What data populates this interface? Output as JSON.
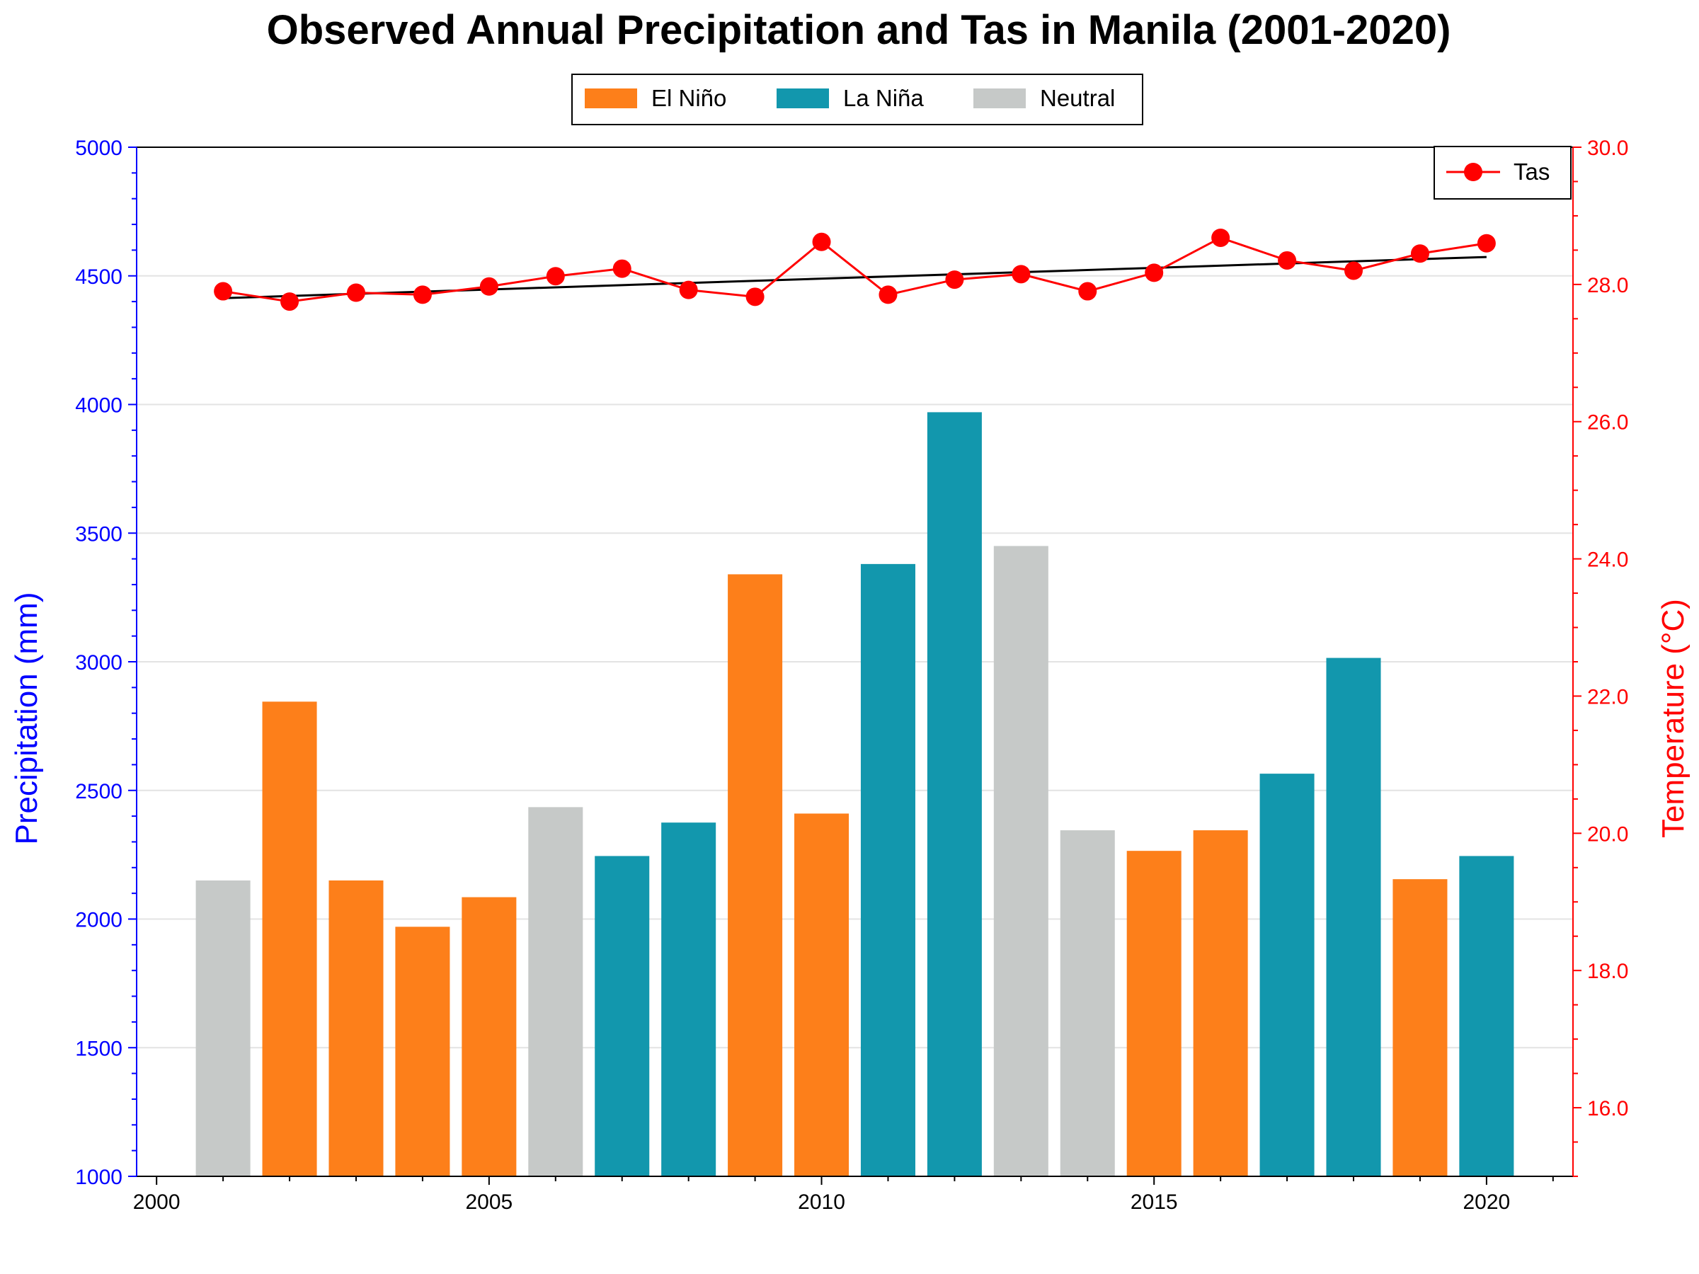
{
  "chart_data": {
    "type": "bar",
    "title": "Observed Annual Precipitation and Tas in Manila (2001-2020)",
    "xlabel": "",
    "ylabel": "Precipitation (mm)",
    "y2label": "Temperature (°C)",
    "xlim": [
      1999.7,
      2021.3
    ],
    "xticks": [
      2000,
      2005,
      2010,
      2015,
      2020
    ],
    "ylim": [
      1000,
      5000
    ],
    "yticks": [
      1000,
      1500,
      2000,
      2500,
      3000,
      3500,
      4000,
      4500,
      5000
    ],
    "y2lim": [
      15.0,
      30.0
    ],
    "y2ticks": [
      "16.0",
      "18.0",
      "20.0",
      "22.0",
      "24.0",
      "26.0",
      "28.0",
      "30.0"
    ],
    "grid": "horizontal",
    "legend_position": "top-center",
    "legend2_position": "top-right",
    "colors": {
      "El Niño": "#fd7f1a",
      "La Niña": "#1297ad",
      "Neutral": "#c6c9c8",
      "tas": "#ff0000",
      "trend": "#000000",
      "left_axis": "#0000ff",
      "right_axis": "#ff0000"
    },
    "legend": [
      "El Niño",
      "La Niña",
      "Neutral"
    ],
    "years": [
      2001,
      2002,
      2003,
      2004,
      2005,
      2006,
      2007,
      2008,
      2009,
      2010,
      2011,
      2012,
      2013,
      2014,
      2015,
      2016,
      2017,
      2018,
      2019,
      2020
    ],
    "precipitation": [
      2150,
      2845,
      2150,
      1970,
      2085,
      2435,
      2245,
      2375,
      3340,
      2410,
      3380,
      3970,
      3450,
      2345,
      2265,
      2345,
      2565,
      3015,
      2155,
      2245
    ],
    "enso_phase": [
      "Neutral",
      "El Niño",
      "El Niño",
      "El Niño",
      "El Niño",
      "Neutral",
      "La Niña",
      "La Niña",
      "El Niño",
      "El Niño",
      "La Niña",
      "La Niña",
      "Neutral",
      "Neutral",
      "El Niño",
      "El Niño",
      "La Niña",
      "La Niña",
      "El Niño",
      "La Niña"
    ],
    "series": [
      {
        "name": "Tas",
        "values": [
          27.9,
          27.75,
          27.88,
          27.85,
          27.97,
          28.12,
          28.23,
          27.92,
          27.82,
          28.62,
          27.85,
          28.07,
          28.15,
          27.9,
          28.17,
          28.68,
          28.35,
          28.2,
          28.45,
          28.6
        ]
      }
    ],
    "trend": {
      "x": [
        2001,
        2020
      ],
      "y": [
        27.8,
        28.4
      ]
    }
  }
}
